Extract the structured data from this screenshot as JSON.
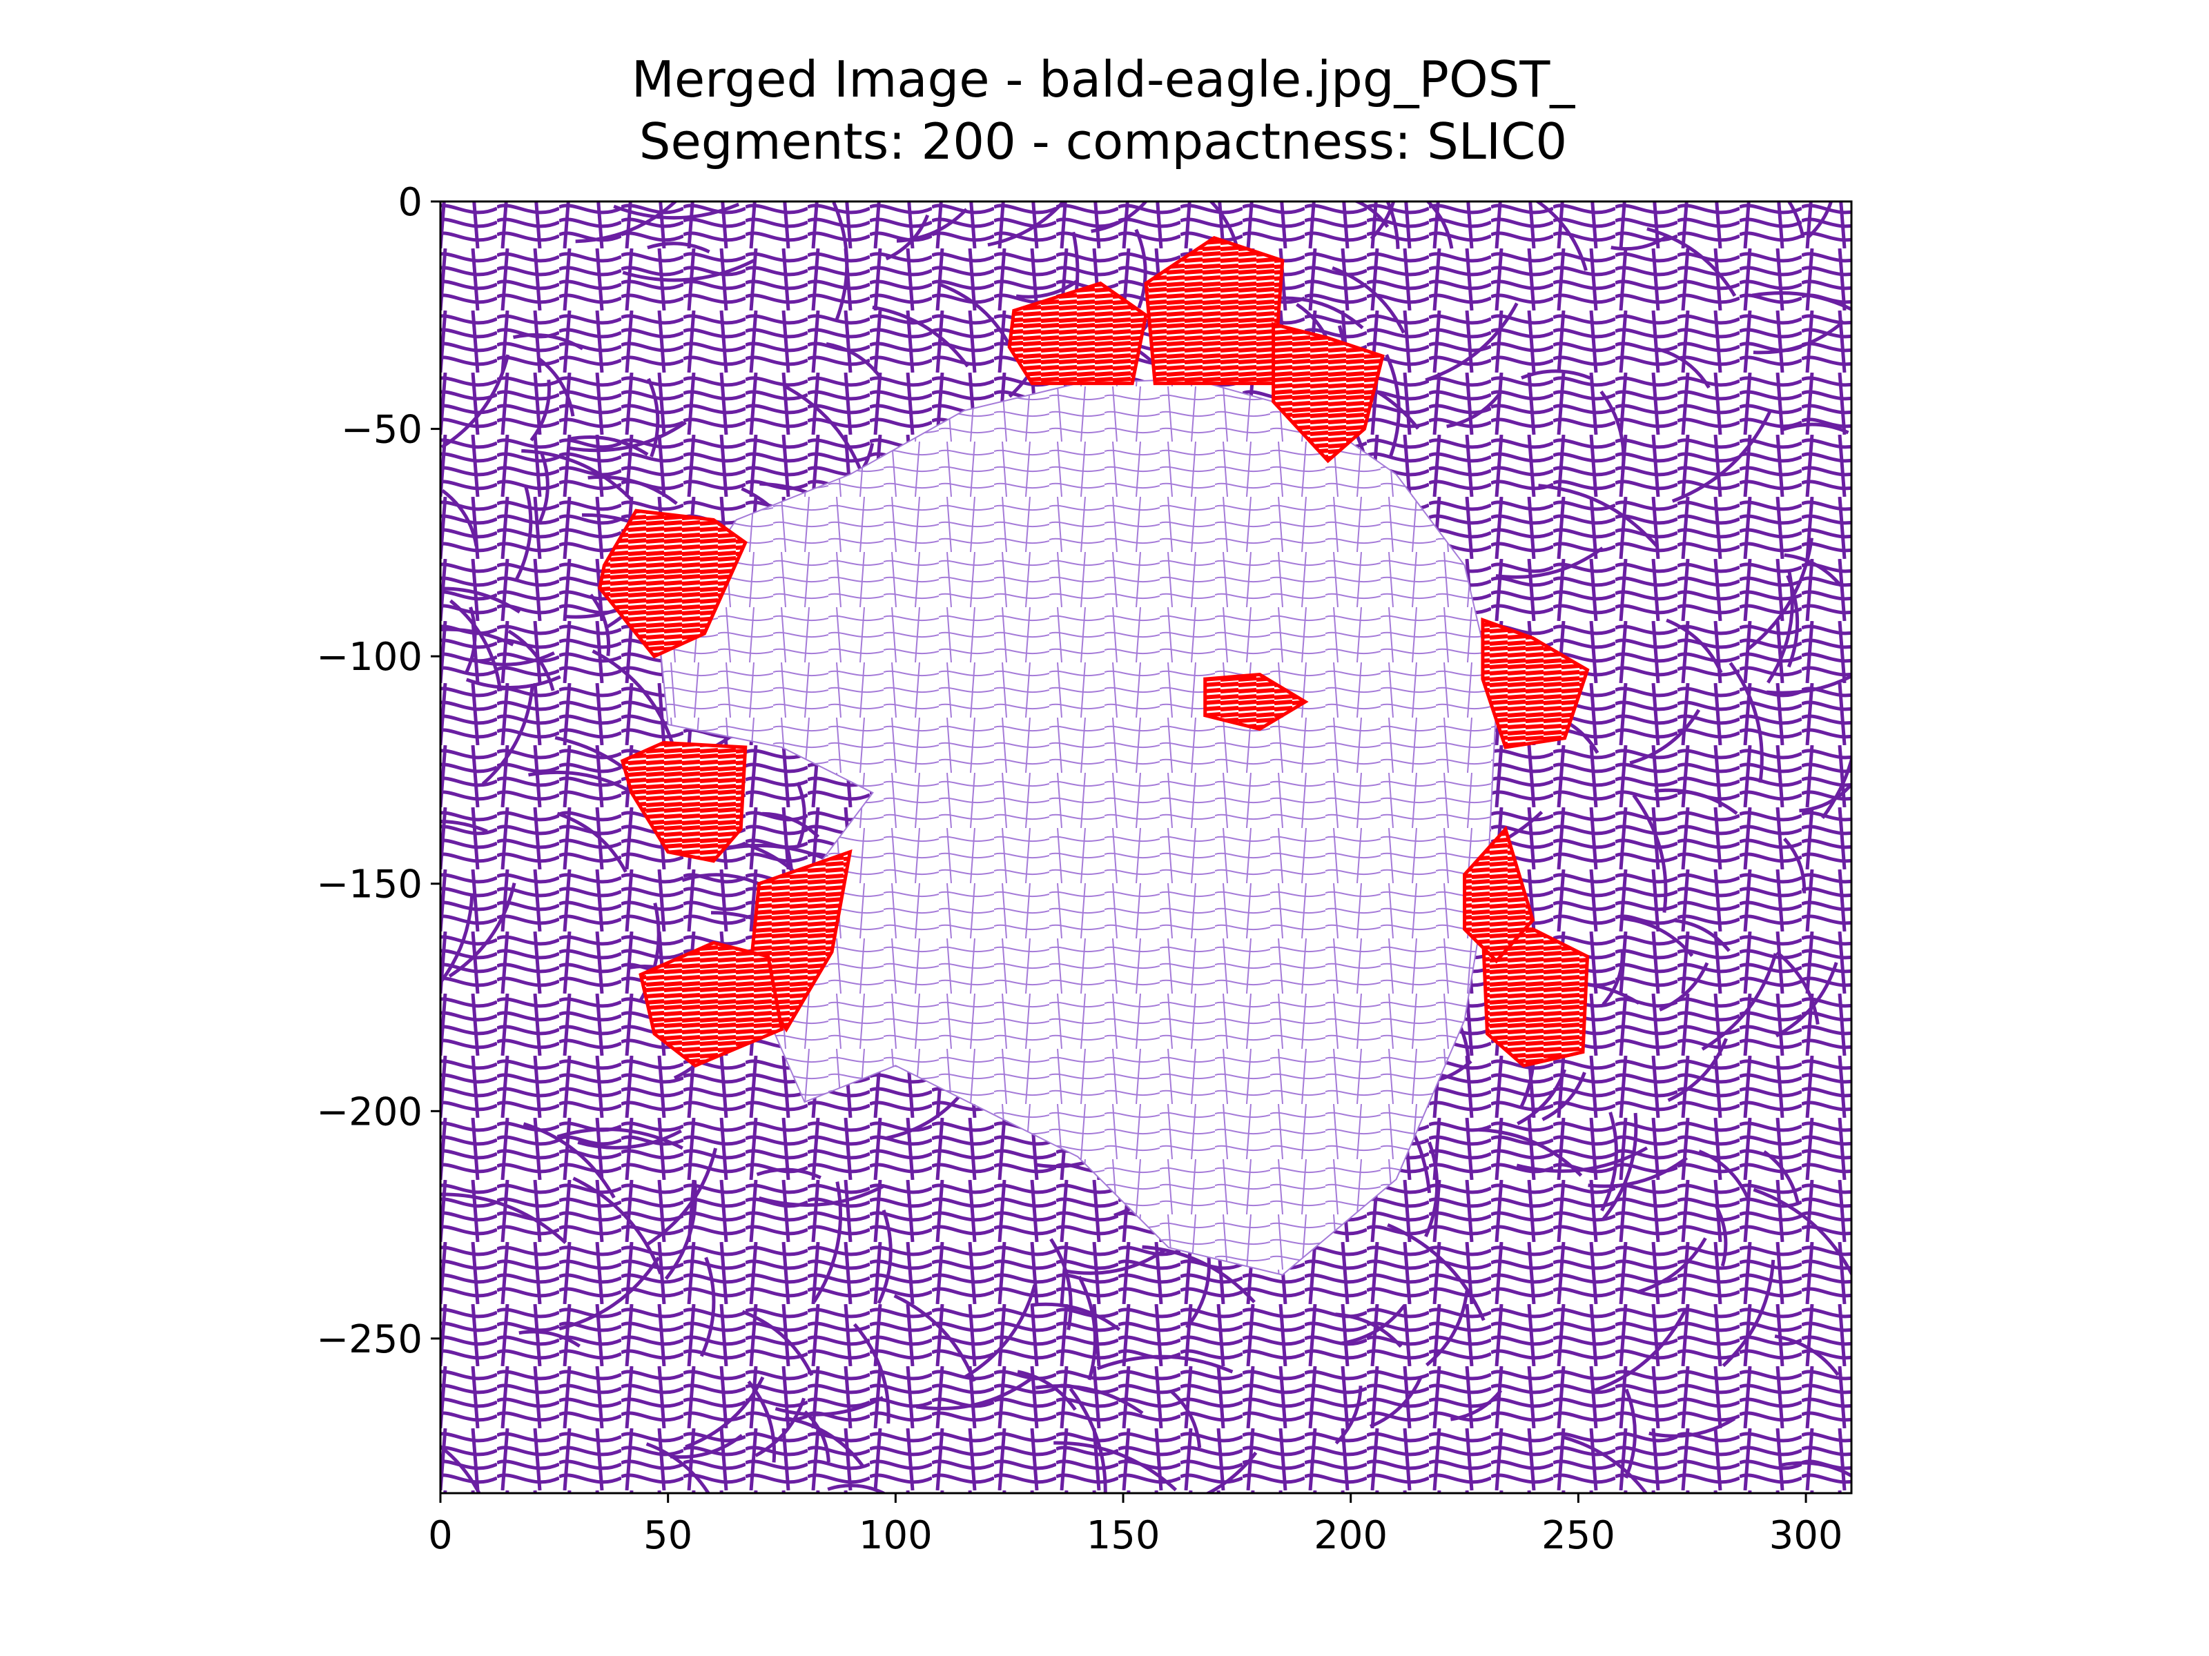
{
  "chart_data": {
    "type": "segmentation-plot",
    "title_lines": [
      "Merged Image - bald-eagle.jpg_POST_",
      "Segments: 200 - compactness: SLIC0"
    ],
    "xlabel": "",
    "ylabel": "",
    "xlim": [
      0,
      310
    ],
    "ylim": [
      -284,
      0
    ],
    "x_ticks": [
      0,
      50,
      100,
      150,
      200,
      250,
      300
    ],
    "y_ticks": [
      0,
      -50,
      -100,
      -150,
      -200,
      -250
    ],
    "grid": false,
    "legend": "none",
    "segment_count": 200,
    "compactness": "SLIC0",
    "colors": {
      "background_segments": "#6a1fa2",
      "eagle_segments": "#a47ad8",
      "eagle_fill": "#ffffff",
      "merged_segments": "#ff0000"
    },
    "eagle_region": {
      "description_points": [
        [
          65,
          -70
        ],
        [
          90,
          -60
        ],
        [
          115,
          -46
        ],
        [
          140,
          -40
        ],
        [
          165,
          -39
        ],
        [
          190,
          -46
        ],
        [
          210,
          -60
        ],
        [
          225,
          -80
        ],
        [
          232,
          -110
        ],
        [
          230,
          -150
        ],
        [
          225,
          -180
        ],
        [
          210,
          -215
        ],
        [
          185,
          -236
        ],
        [
          160,
          -230
        ],
        [
          140,
          -210
        ],
        [
          120,
          -200
        ],
        [
          100,
          -190
        ],
        [
          80,
          -198
        ],
        [
          70,
          -175
        ],
        [
          80,
          -150
        ],
        [
          95,
          -130
        ],
        [
          75,
          -120
        ],
        [
          50,
          -115
        ],
        [
          48,
          -95
        ]
      ]
    },
    "merged_regions": [
      {
        "polygon": [
          [
            126,
            -24
          ],
          [
            145,
            -18
          ],
          [
            155,
            -25
          ],
          [
            152,
            -40
          ],
          [
            130,
            -40
          ],
          [
            125,
            -32
          ]
        ]
      },
      {
        "polygon": [
          [
            155,
            -18
          ],
          [
            170,
            -8
          ],
          [
            185,
            -13
          ],
          [
            183,
            -40
          ],
          [
            157,
            -40
          ]
        ]
      },
      {
        "polygon": [
          [
            183,
            -27
          ],
          [
            195,
            -30
          ],
          [
            207,
            -34
          ],
          [
            203,
            -50
          ],
          [
            195,
            -57
          ],
          [
            183,
            -44
          ]
        ]
      },
      {
        "polygon": [
          [
            36,
            -80
          ],
          [
            43,
            -68
          ],
          [
            60,
            -70
          ],
          [
            67,
            -75
          ],
          [
            58,
            -95
          ],
          [
            47,
            -100
          ],
          [
            35,
            -85
          ]
        ]
      },
      {
        "polygon": [
          [
            40,
            -123
          ],
          [
            49,
            -119
          ],
          [
            67,
            -120
          ],
          [
            66,
            -138
          ],
          [
            60,
            -145
          ],
          [
            50,
            -143
          ],
          [
            42,
            -130
          ]
        ]
      },
      {
        "polygon": [
          [
            70,
            -150
          ],
          [
            90,
            -143
          ],
          [
            86,
            -165
          ],
          [
            76,
            -182
          ],
          [
            68,
            -170
          ]
        ]
      },
      {
        "polygon": [
          [
            44,
            -170
          ],
          [
            60,
            -163
          ],
          [
            72,
            -166
          ],
          [
            75,
            -182
          ],
          [
            56,
            -190
          ],
          [
            47,
            -183
          ]
        ]
      },
      {
        "polygon": [
          [
            229,
            -92
          ],
          [
            240,
            -96
          ],
          [
            252,
            -103
          ],
          [
            247,
            -118
          ],
          [
            234,
            -120
          ],
          [
            229,
            -105
          ]
        ]
      },
      {
        "polygon": [
          [
            229,
            -160
          ],
          [
            240,
            -160
          ],
          [
            252,
            -166
          ],
          [
            251,
            -187
          ],
          [
            238,
            -190
          ],
          [
            230,
            -183
          ]
        ]
      },
      {
        "polygon": [
          [
            225,
            -148
          ],
          [
            234,
            -138
          ],
          [
            240,
            -158
          ],
          [
            232,
            -167
          ],
          [
            225,
            -160
          ]
        ]
      },
      {
        "polygon": [
          [
            168,
            -105
          ],
          [
            180,
            -104
          ],
          [
            190,
            -110
          ],
          [
            180,
            -116
          ],
          [
            168,
            -113
          ]
        ]
      }
    ]
  }
}
